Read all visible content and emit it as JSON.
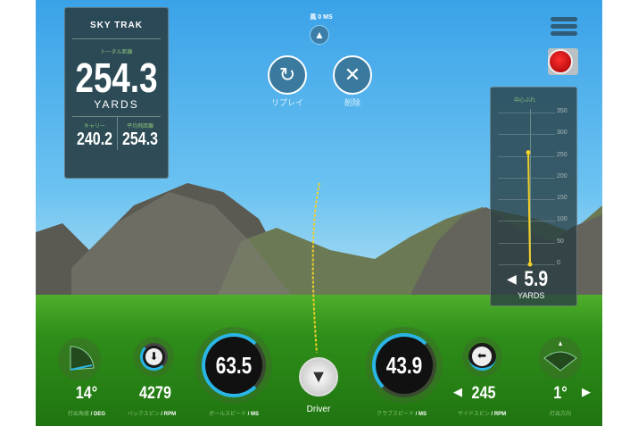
{
  "wind": {
    "label": "風 0 MS"
  },
  "actions": {
    "replay": "リプレイ",
    "delete": "削除"
  },
  "distance_panel": {
    "logo": "SKY TRAK",
    "total_label": "トータル距離",
    "total": "254.3",
    "unit": "YARDS",
    "carry_label": "キャリー",
    "carry": "240.2",
    "avg_label": "平均飛距離",
    "avg": "254.3"
  },
  "deviation_panel": {
    "title": "中心ぶれ",
    "ticks": [
      "350",
      "300",
      "250",
      "200",
      "150",
      "100",
      "50",
      "0"
    ],
    "value": "5.9",
    "unit": "YARDS",
    "direction": "left",
    "trail_distance": 258
  },
  "metrics": {
    "launch_angle": {
      "value": "14°",
      "label": "打出角度",
      "unit": "/ DEG"
    },
    "back_spin": {
      "value": "4279",
      "label": "バックスピン",
      "unit": "/ RPM"
    },
    "ball_speed": {
      "value": "63.5",
      "label": "ボールスピード",
      "unit": "/ MS"
    },
    "club": {
      "value": "Driver"
    },
    "club_speed": {
      "value": "43.9",
      "label": "クラブスピード",
      "unit": "/ MS"
    },
    "side_spin": {
      "value": "245",
      "label": "サイドスピン",
      "unit": "/ RPM"
    },
    "launch_direction": {
      "value": "1°",
      "label": "打出方向"
    }
  },
  "colors": {
    "accent": "#29b6e6",
    "trail": "#f2d02a",
    "record": "#e01010"
  }
}
